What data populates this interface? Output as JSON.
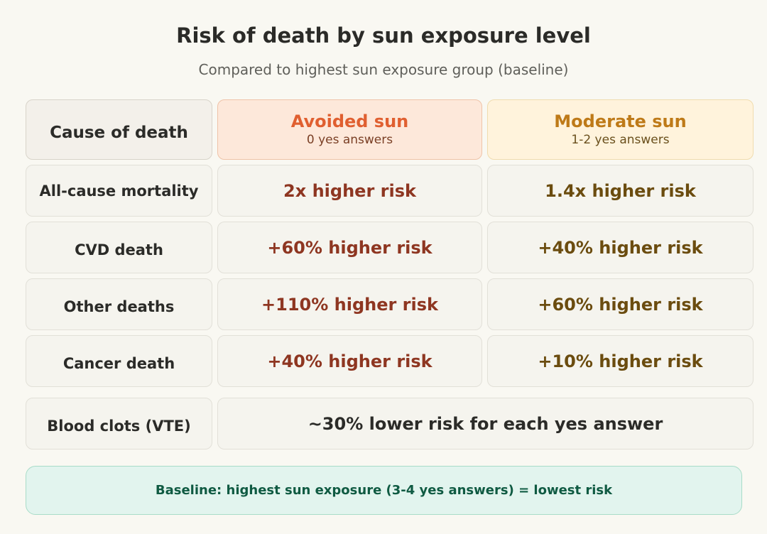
{
  "title": "Risk of death by sun exposure level",
  "subtitle": "Compared to highest sun exposure group (baseline)",
  "header": {
    "cause_label": "Cause of death",
    "avoided": {
      "title": "Avoided sun",
      "subtitle": "0 yes answers"
    },
    "moderate": {
      "title": "Moderate sun",
      "subtitle": "1-2 yes answers"
    }
  },
  "rows": [
    {
      "cause": "All-cause mortality",
      "avoided": "2x higher risk",
      "moderate": "1.4x higher risk"
    },
    {
      "cause": "CVD death",
      "avoided": "+60% higher risk",
      "moderate": "+40% higher risk"
    },
    {
      "cause": "Other deaths",
      "avoided": "+110% higher risk",
      "moderate": "+60% higher risk"
    },
    {
      "cause": "Cancer death",
      "avoided": "+40% higher risk",
      "moderate": "+10% higher risk"
    }
  ],
  "vte": {
    "cause": "Blood clots (VTE)",
    "value": "~30% lower risk for each yes answer"
  },
  "baseline_note": "Baseline: highest sun exposure (3-4 yes answers) = lowest risk",
  "colors": {
    "avoided_accent": "#e05f30",
    "moderate_accent": "#be7a18",
    "baseline_accent": "#0f5a42"
  }
}
